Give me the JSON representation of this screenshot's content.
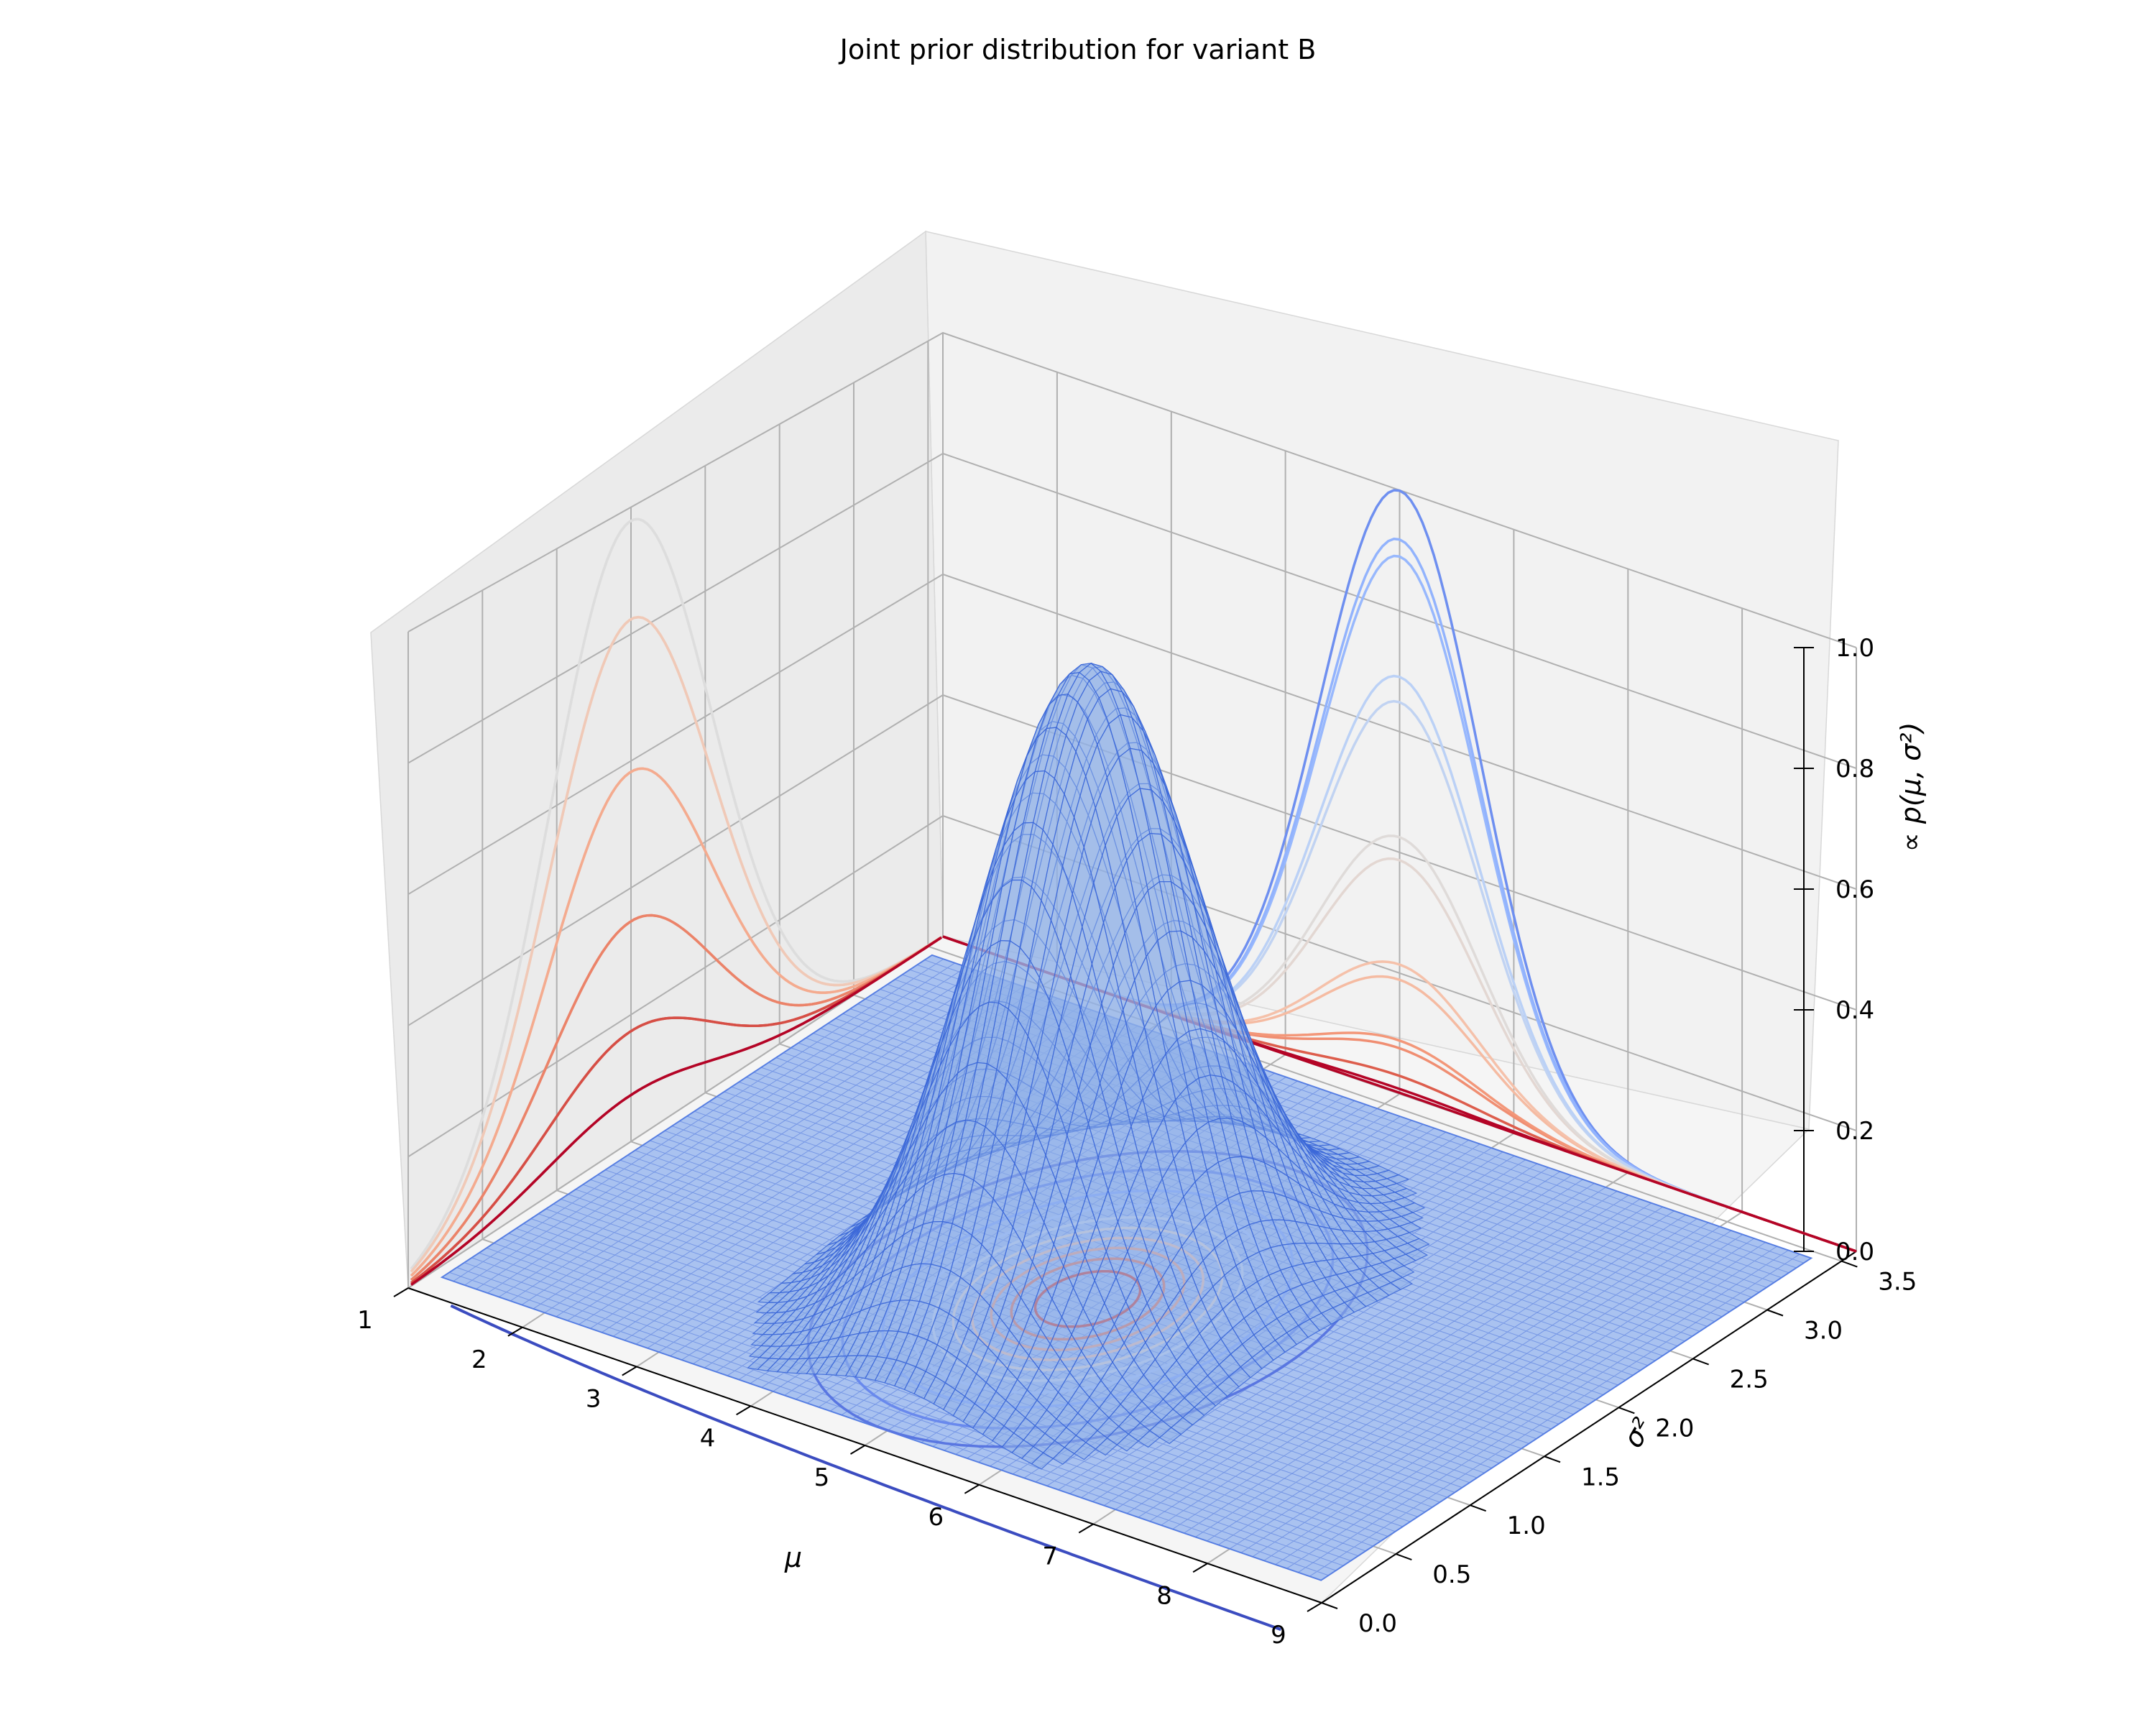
{
  "chart_data": {
    "type": "surface",
    "title": "Joint prior distribution for variant B",
    "xlabel": "μ",
    "ylabel": "σ²",
    "zlabel": "∝ p(μ, σ²)",
    "xlim": [
      1,
      9
    ],
    "ylim": [
      0,
      3.6
    ],
    "zlim": [
      0,
      1
    ],
    "x_ticks": [
      "1",
      "2",
      "3",
      "4",
      "5",
      "6",
      "7",
      "8",
      "9"
    ],
    "y_ticks": [
      "0.0",
      "0.5",
      "1.0",
      "1.5",
      "2.0",
      "2.5",
      "3.0",
      "3.5"
    ],
    "z_ticks": [
      "0.0",
      "0.2",
      "0.4",
      "0.6",
      "0.8",
      "1.0"
    ],
    "grid": true,
    "colormap": "coolwarm",
    "surface_color": "#4169e1",
    "surface_peak": {
      "mu": 5.0,
      "sigma2": 1.5,
      "z": 1.0
    },
    "surface_spread": {
      "mu_sd": 0.7,
      "sigma2_sd": 0.55
    }
  }
}
